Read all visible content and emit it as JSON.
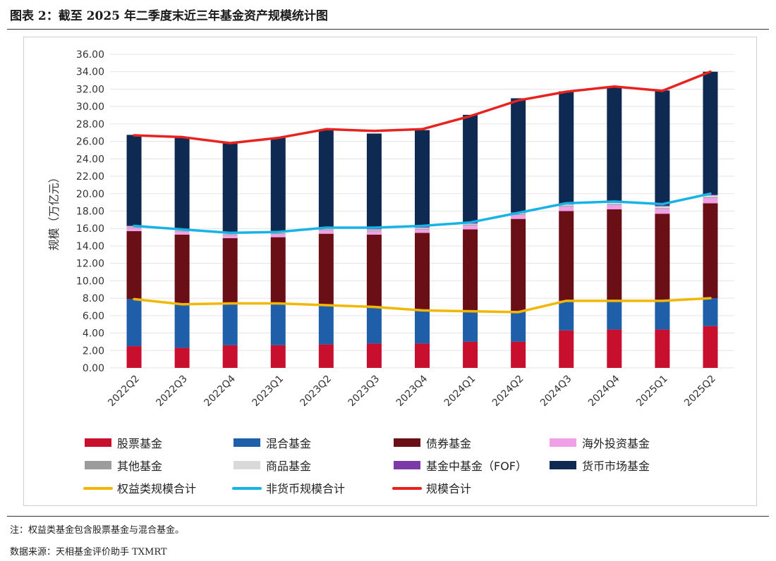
{
  "figure": {
    "title": "图表 2：截至 2025 年二季度末近三年基金资产规模统计图",
    "note": "注：权益类基金包含股票基金与混合基金。",
    "source": "数据来源：天相基金评价助手 TXMRT"
  },
  "chart_data": {
    "type": "bar",
    "stacked": true,
    "ylabel": "规模（万亿元）",
    "xlabel": "",
    "ylim": [
      0,
      36
    ],
    "y_ticks": [
      "0.00",
      "2.00",
      "4.00",
      "6.00",
      "8.00",
      "10.00",
      "12.00",
      "14.00",
      "16.00",
      "18.00",
      "20.00",
      "22.00",
      "24.00",
      "26.00",
      "28.00",
      "30.00",
      "32.00",
      "34.00",
      "36.00"
    ],
    "grid": true,
    "legend_position": "bottom",
    "categories": [
      "2022Q2",
      "2022Q3",
      "2022Q4",
      "2023Q1",
      "2023Q2",
      "2023Q3",
      "2023Q4",
      "2024Q1",
      "2024Q2",
      "2024Q3",
      "2024Q4",
      "2025Q1",
      "2025Q2"
    ],
    "bar_series": [
      {
        "name": "股票基金",
        "color": "#c8102e",
        "values": [
          2.5,
          2.3,
          2.6,
          2.6,
          2.7,
          2.8,
          2.8,
          3.0,
          3.0,
          4.3,
          4.4,
          4.4,
          4.8
        ]
      },
      {
        "name": "混合基金",
        "color": "#1f5ea8",
        "values": [
          5.4,
          5.0,
          4.8,
          4.8,
          4.5,
          4.2,
          3.8,
          3.5,
          3.4,
          3.4,
          3.3,
          3.3,
          3.2
        ]
      },
      {
        "name": "债券基金",
        "color": "#6b0f17",
        "values": [
          7.8,
          8.0,
          7.5,
          7.6,
          8.2,
          8.3,
          8.9,
          9.4,
          10.7,
          10.3,
          10.5,
          10.0,
          10.9
        ]
      },
      {
        "name": "海外投资基金",
        "color": "#f0a0e6",
        "values": [
          0.35,
          0.35,
          0.35,
          0.35,
          0.4,
          0.4,
          0.4,
          0.45,
          0.45,
          0.5,
          0.5,
          0.55,
          0.6
        ]
      },
      {
        "name": "其他基金",
        "color": "#9c9c9c",
        "values": [
          0.1,
          0.1,
          0.1,
          0.1,
          0.1,
          0.1,
          0.1,
          0.1,
          0.1,
          0.1,
          0.1,
          0.1,
          0.1
        ]
      },
      {
        "name": "商品基金",
        "color": "#d9d9d9",
        "values": [
          0.1,
          0.1,
          0.1,
          0.1,
          0.1,
          0.1,
          0.1,
          0.1,
          0.1,
          0.15,
          0.15,
          0.2,
          0.2
        ]
      },
      {
        "name": "基金中基金（FOF）",
        "color": "#7b3aa8",
        "values": [
          0.1,
          0.1,
          0.1,
          0.1,
          0.1,
          0.1,
          0.1,
          0.1,
          0.1,
          0.1,
          0.1,
          0.1,
          0.1
        ]
      },
      {
        "name": "货币市场基金",
        "color": "#0f2a52",
        "values": [
          10.4,
          10.5,
          10.3,
          10.8,
          11.2,
          10.9,
          11.1,
          12.4,
          13.1,
          12.9,
          13.2,
          13.2,
          14.1
        ]
      }
    ],
    "line_series": [
      {
        "name": "权益类规模合计",
        "color": "#f2b705",
        "values": [
          7.9,
          7.3,
          7.4,
          7.4,
          7.2,
          7.0,
          6.6,
          6.5,
          6.4,
          7.7,
          7.7,
          7.7,
          8.0
        ]
      },
      {
        "name": "非货币规模合计",
        "color": "#17b3e6",
        "values": [
          16.3,
          15.9,
          15.5,
          15.6,
          16.1,
          16.1,
          16.3,
          16.7,
          17.8,
          18.9,
          19.1,
          18.8,
          20.0
        ]
      },
      {
        "name": "规模合计",
        "color": "#e8231f",
        "values": [
          26.7,
          26.5,
          25.8,
          26.4,
          27.4,
          27.2,
          27.4,
          28.9,
          30.7,
          31.7,
          32.3,
          31.8,
          34.0
        ]
      }
    ],
    "legend": [
      "股票基金",
      "混合基金",
      "债券基金",
      "海外投资基金",
      "其他基金",
      "商品基金",
      "基金中基金（FOF）",
      "货币市场基金",
      "权益类规模合计",
      "非货币规模合计",
      "规模合计"
    ]
  }
}
